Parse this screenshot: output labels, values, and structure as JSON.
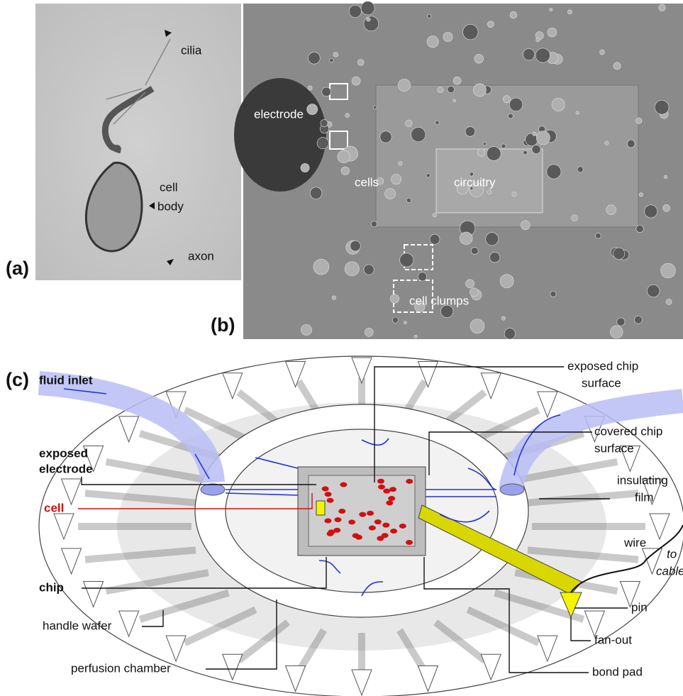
{
  "panel_a": {
    "label": "(a)",
    "cilia": "cilia",
    "cell_body": [
      "cell",
      "body"
    ],
    "axon": "axon"
  },
  "panel_b": {
    "label": "(b)",
    "electrode": "electrode",
    "cells": "cells",
    "circuitry": "circuitry",
    "cell_clumps": "cell clumps"
  },
  "panel_c": {
    "label": "(c)",
    "fluid_inlet": "fluid inlet",
    "exposed_electrode": [
      "exposed",
      "electrode"
    ],
    "cell": "cell",
    "chip": "chip",
    "handle_wafer": "handle wafer",
    "perfusion_chamber": "perfusion chamber",
    "exposed_chip_surface": [
      "exposed chip",
      "surface"
    ],
    "covered_chip_surface": [
      "covered chip",
      "surface"
    ],
    "insulating_film": [
      "insulating",
      "film"
    ],
    "wire": "wire",
    "to_cable": [
      "to",
      "cable"
    ],
    "pin": "pin",
    "fan_out": "fan-out",
    "bond_pad": "bond pad"
  }
}
